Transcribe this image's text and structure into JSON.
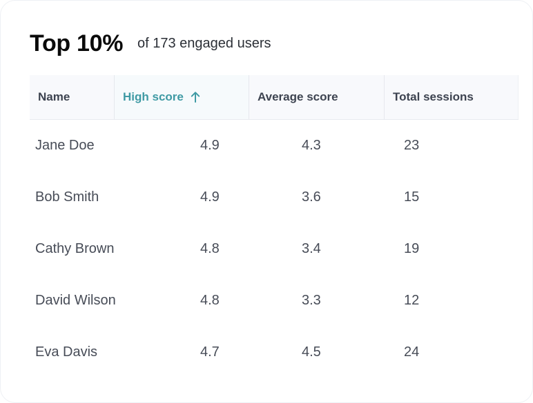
{
  "header": {
    "title": "Top 10%",
    "subtitle": "of 173 engaged users"
  },
  "table": {
    "columns": {
      "name": "Name",
      "high_score": "High score",
      "average_score": "Average score",
      "total_sessions": "Total sessions"
    },
    "sort": {
      "column": "high_score",
      "direction": "ascending",
      "icon": "arrow-up-icon"
    },
    "accent_color": "#3f9aa4",
    "rows": [
      {
        "name": "Jane Doe",
        "high_score": "4.9",
        "average_score": "4.3",
        "total_sessions": "23"
      },
      {
        "name": "Bob Smith",
        "high_score": "4.9",
        "average_score": "3.6",
        "total_sessions": "15"
      },
      {
        "name": "Cathy Brown",
        "high_score": "4.8",
        "average_score": "3.4",
        "total_sessions": "19"
      },
      {
        "name": "David Wilson",
        "high_score": "4.8",
        "average_score": "3.3",
        "total_sessions": "12"
      },
      {
        "name": "Eva Davis",
        "high_score": "4.7",
        "average_score": "4.5",
        "total_sessions": "24"
      }
    ]
  }
}
